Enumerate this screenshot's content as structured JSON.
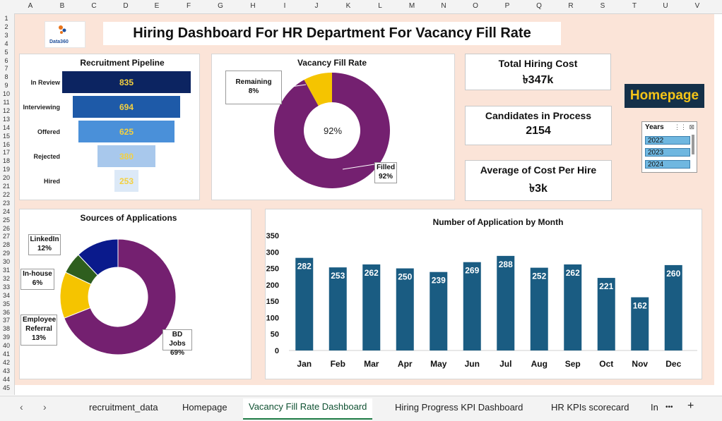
{
  "columns": [
    "A",
    "B",
    "C",
    "D",
    "E",
    "F",
    "G",
    "H",
    "I",
    "J",
    "K",
    "L",
    "M",
    "N",
    "O",
    "P",
    "Q",
    "R",
    "S",
    "T",
    "U",
    "V"
  ],
  "rows": [
    "1",
    "2",
    "3",
    "4",
    "5",
    "6",
    "7",
    "8",
    "9",
    "10",
    "11",
    "12",
    "13",
    "14",
    "15",
    "16",
    "17",
    "18",
    "19",
    "20",
    "21",
    "22",
    "23",
    "24",
    "25",
    "26",
    "27",
    "28",
    "29",
    "30",
    "31",
    "32",
    "33",
    "34",
    "35",
    "36",
    "37",
    "38",
    "39",
    "40",
    "41",
    "42",
    "43",
    "44",
    "45"
  ],
  "title": "Hiring Dashboard For HR Department For Vacancy Fill Rate",
  "logo": {
    "text": "Data360",
    "sub": "Solution"
  },
  "pipeline": {
    "title": "Recruitment Pipeline",
    "stages": [
      {
        "label": "In Review",
        "value": "835",
        "color": "#0c2461"
      },
      {
        "label": "Interviewing",
        "value": "694",
        "color": "#1e5aa8"
      },
      {
        "label": "Offered",
        "value": "625",
        "color": "#4a90d9"
      },
      {
        "label": "Rejected",
        "value": "380",
        "color": "#a8c8ec"
      },
      {
        "label": "Hired",
        "value": "253",
        "color": "#dce9f7"
      }
    ]
  },
  "vacancy": {
    "title": "Vacancy Fill Rate",
    "center": "92%",
    "remaining_label": "Remaining",
    "remaining_pct": "8%",
    "filled_label": "Filled",
    "filled_pct": "92%",
    "filled_color": "#742070",
    "remaining_color": "#f5c400"
  },
  "kpis": {
    "total_cost_label": "Total Hiring Cost",
    "total_cost_value": "৳347k",
    "candidates_label": "Candidates in Process",
    "candidates_value": "2154",
    "avg_cost_label": "Average of Cost Per Hire",
    "avg_cost_value": "৳3k"
  },
  "homepage_button": "Homepage",
  "slicer": {
    "title": "Years",
    "items": [
      "2022",
      "2023",
      "2024"
    ]
  },
  "sources": {
    "title": "Sources of Applications",
    "slices": [
      {
        "label": "LinkedIn",
        "pct": "12%",
        "value": 12,
        "color": "#0a1a8c"
      },
      {
        "label": "In-house",
        "pct": "6%",
        "value": 6,
        "color": "#2e5e1e"
      },
      {
        "label": "Employee Referral",
        "pct": "13%",
        "value": 13,
        "color": "#f5c400"
      },
      {
        "label": "BD Jobs",
        "pct": "69%",
        "value": 69,
        "color": "#742070"
      }
    ]
  },
  "chart_data": {
    "type": "bar",
    "title": "Number of Application by Month",
    "categories": [
      "Jan",
      "Feb",
      "Mar",
      "Apr",
      "May",
      "Jun",
      "Jul",
      "Aug",
      "Sep",
      "Oct",
      "Nov",
      "Dec"
    ],
    "values": [
      282,
      253,
      262,
      250,
      239,
      269,
      288,
      252,
      262,
      221,
      162,
      260
    ],
    "ylim": [
      0,
      350
    ],
    "yticks": [
      "0",
      "50",
      "100",
      "150",
      "200",
      "250",
      "300",
      "350"
    ],
    "color": "#1a5c82"
  },
  "tabs": {
    "items": [
      "recruitment_data",
      "Homepage",
      "Vacancy Fill Rate Dashboard",
      "Hiring Progress KPI Dashboard",
      "HR KPIs scorecard",
      "In"
    ],
    "more": "•••",
    "add": "+"
  }
}
